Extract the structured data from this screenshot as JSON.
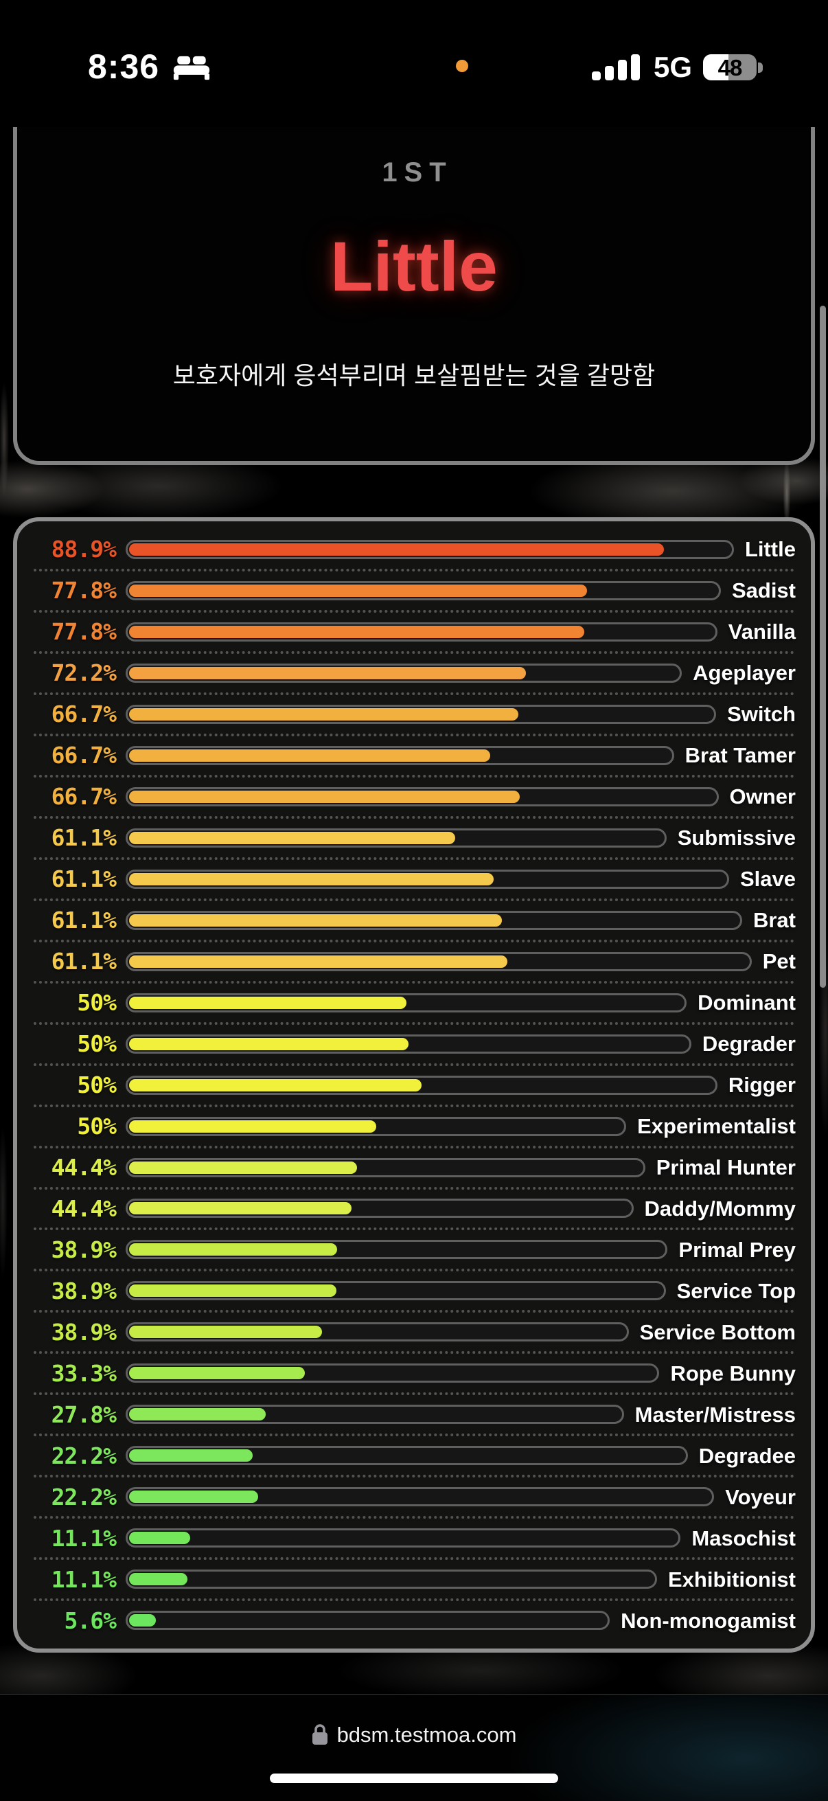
{
  "status_bar": {
    "time": "8:36",
    "network": "5G",
    "battery_level": "48",
    "mic_indicator_color": "#f09a38"
  },
  "result_card": {
    "rank": "1ST",
    "title": "Little",
    "title_color": "#ef4b4b",
    "description": "보호자에게 응석부리며 보살핌받는 것을 갈망함"
  },
  "results": {
    "items": [
      {
        "label": "Little",
        "percent": "88.9%",
        "value": 88.9,
        "color": "#e85327"
      },
      {
        "label": "Sadist",
        "percent": "77.8%",
        "value": 77.8,
        "color": "#f08432"
      },
      {
        "label": "Vanilla",
        "percent": "77.8%",
        "value": 77.8,
        "color": "#f08432"
      },
      {
        "label": "Ageplayer",
        "percent": "72.2%",
        "value": 72.2,
        "color": "#f4a241"
      },
      {
        "label": "Switch",
        "percent": "66.7%",
        "value": 66.7,
        "color": "#f2b13e"
      },
      {
        "label": "Brat Tamer",
        "percent": "66.7%",
        "value": 66.7,
        "color": "#f2b13e"
      },
      {
        "label": "Owner",
        "percent": "66.7%",
        "value": 66.7,
        "color": "#f2b13e"
      },
      {
        "label": "Submissive",
        "percent": "61.1%",
        "value": 61.1,
        "color": "#f5c94b"
      },
      {
        "label": "Slave",
        "percent": "61.1%",
        "value": 61.1,
        "color": "#f5c94b"
      },
      {
        "label": "Brat",
        "percent": "61.1%",
        "value": 61.1,
        "color": "#f5c94b"
      },
      {
        "label": "Pet",
        "percent": "61.1%",
        "value": 61.1,
        "color": "#f5c94b"
      },
      {
        "label": "Dominant",
        "percent": "50%",
        "value": 50,
        "color": "#f1f13c"
      },
      {
        "label": "Degrader",
        "percent": "50%",
        "value": 50,
        "color": "#f1f13c"
      },
      {
        "label": "Rigger",
        "percent": "50%",
        "value": 50,
        "color": "#f1f13c"
      },
      {
        "label": "Experimentalist",
        "percent": "50%",
        "value": 50,
        "color": "#f1f13c"
      },
      {
        "label": "Primal Hunter",
        "percent": "44.4%",
        "value": 44.4,
        "color": "#dcee49"
      },
      {
        "label": "Daddy/Mommy",
        "percent": "44.4%",
        "value": 44.4,
        "color": "#dcee49"
      },
      {
        "label": "Primal Prey",
        "percent": "38.9%",
        "value": 38.9,
        "color": "#c6ec45"
      },
      {
        "label": "Service Top",
        "percent": "38.9%",
        "value": 38.9,
        "color": "#c6ec45"
      },
      {
        "label": "Service Bottom",
        "percent": "38.9%",
        "value": 38.9,
        "color": "#c6ec45"
      },
      {
        "label": "Rope Bunny",
        "percent": "33.3%",
        "value": 33.3,
        "color": "#a7ec4e"
      },
      {
        "label": "Master/Mistress",
        "percent": "27.8%",
        "value": 27.8,
        "color": "#8fe957"
      },
      {
        "label": "Degradee",
        "percent": "22.2%",
        "value": 22.2,
        "color": "#7ce65c"
      },
      {
        "label": "Voyeur",
        "percent": "22.2%",
        "value": 22.2,
        "color": "#7ce65c"
      },
      {
        "label": "Masochist",
        "percent": "11.1%",
        "value": 11.1,
        "color": "#74e65a"
      },
      {
        "label": "Exhibitionist",
        "percent": "11.1%",
        "value": 11.1,
        "color": "#74e65a"
      },
      {
        "label": "Non-monogamist",
        "percent": "5.6%",
        "value": 5.6,
        "color": "#6de65f"
      }
    ]
  },
  "url_bar": {
    "domain": "bdsm.testmoa.com"
  }
}
